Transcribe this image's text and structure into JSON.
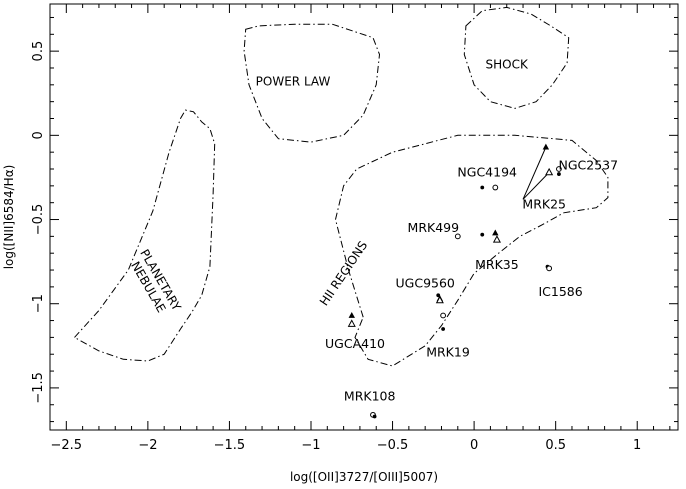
{
  "chart_data": {
    "type": "scatter",
    "xlabel": "log([OII]3727/[OIII]5007)",
    "ylabel": "log([NII]6584/Hα)",
    "xlim": [
      -2.6,
      1.25
    ],
    "ylim": [
      -1.75,
      0.78
    ],
    "xticks": [
      -2.5,
      -2,
      -1.5,
      -1,
      -0.5,
      0,
      0.5,
      1
    ],
    "yticks": [
      -1.5,
      -1,
      -0.5,
      0,
      0.5
    ],
    "xtick_labels": [
      "−2.5",
      "−2",
      "−1.5",
      "−1",
      "−0.5",
      "0",
      "0.5",
      "1"
    ],
    "ytick_labels": [
      "−1.5",
      "−1",
      "−0.5",
      "0",
      "0.5"
    ],
    "grid": false,
    "regions": [
      {
        "name": "PLANETARY NEBULAE",
        "label_lines": [
          "PLANETARY",
          "NEBULAE"
        ],
        "label_at": [
          -1.96,
          -0.88
        ],
        "label_rotation": 60,
        "boundary": [
          [
            -2.45,
            -1.2
          ],
          [
            -2.3,
            -1.04
          ],
          [
            -2.12,
            -0.8
          ],
          [
            -1.97,
            -0.45
          ],
          [
            -1.87,
            -0.1
          ],
          [
            -1.8,
            0.1
          ],
          [
            -1.77,
            0.15
          ],
          [
            -1.72,
            0.14
          ],
          [
            -1.67,
            0.08
          ],
          [
            -1.62,
            0.04
          ],
          [
            -1.59,
            -0.05
          ],
          [
            -1.6,
            -0.35
          ],
          [
            -1.62,
            -0.78
          ],
          [
            -1.67,
            -0.95
          ],
          [
            -1.73,
            -1.05
          ],
          [
            -1.8,
            -1.15
          ],
          [
            -1.9,
            -1.3
          ],
          [
            -2.0,
            -1.34
          ],
          [
            -2.15,
            -1.33
          ],
          [
            -2.3,
            -1.28
          ],
          [
            -2.45,
            -1.2
          ]
        ]
      },
      {
        "name": "POWER LAW",
        "label_lines": [
          "POWER LAW"
        ],
        "label_at": [
          -1.11,
          0.32
        ],
        "label_rotation": 0,
        "boundary": [
          [
            -1.4,
            0.63
          ],
          [
            -1.32,
            0.65
          ],
          [
            -1.1,
            0.66
          ],
          [
            -0.87,
            0.66
          ],
          [
            -0.62,
            0.58
          ],
          [
            -0.58,
            0.48
          ],
          [
            -0.6,
            0.3
          ],
          [
            -0.68,
            0.12
          ],
          [
            -0.8,
            0.0
          ],
          [
            -1.0,
            -0.04
          ],
          [
            -1.2,
            -0.02
          ],
          [
            -1.3,
            0.1
          ],
          [
            -1.38,
            0.3
          ],
          [
            -1.41,
            0.5
          ],
          [
            -1.4,
            0.63
          ]
        ]
      },
      {
        "name": "SHOCK",
        "label_lines": [
          "SHOCK"
        ],
        "label_at": [
          0.2,
          0.42
        ],
        "label_rotation": 0,
        "boundary": [
          [
            -0.05,
            0.65
          ],
          [
            0.05,
            0.74
          ],
          [
            0.2,
            0.76
          ],
          [
            0.35,
            0.72
          ],
          [
            0.47,
            0.65
          ],
          [
            0.58,
            0.58
          ],
          [
            0.57,
            0.43
          ],
          [
            0.48,
            0.3
          ],
          [
            0.38,
            0.2
          ],
          [
            0.25,
            0.16
          ],
          [
            0.1,
            0.2
          ],
          [
            0.0,
            0.3
          ],
          [
            -0.06,
            0.48
          ],
          [
            -0.05,
            0.65
          ]
        ]
      },
      {
        "name": "HII REGIONS",
        "label_lines": [
          "HII REGIONS"
        ],
        "label_at": [
          -0.8,
          -0.82
        ],
        "label_rotation": -56,
        "boundary": [
          [
            -0.68,
            -1.08
          ],
          [
            -0.77,
            -0.8
          ],
          [
            -0.85,
            -0.5
          ],
          [
            -0.8,
            -0.3
          ],
          [
            -0.72,
            -0.2
          ],
          [
            -0.5,
            -0.1
          ],
          [
            -0.1,
            0.0
          ],
          [
            0.25,
            0.0
          ],
          [
            0.6,
            -0.03
          ],
          [
            0.75,
            -0.15
          ],
          [
            0.82,
            -0.25
          ],
          [
            0.82,
            -0.37
          ],
          [
            0.75,
            -0.43
          ],
          [
            0.55,
            -0.46
          ],
          [
            0.42,
            -0.53
          ],
          [
            0.28,
            -0.6
          ],
          [
            0.15,
            -0.7
          ],
          [
            0.0,
            -0.82
          ],
          [
            -0.1,
            -0.98
          ],
          [
            -0.2,
            -1.13
          ],
          [
            -0.3,
            -1.25
          ],
          [
            -0.5,
            -1.37
          ],
          [
            -0.65,
            -1.33
          ],
          [
            -0.73,
            -1.2
          ],
          [
            -0.68,
            -1.08
          ]
        ]
      }
    ],
    "points": [
      {
        "x": 0.44,
        "y": -0.07,
        "marker": "filled-triangle"
      },
      {
        "x": 0.46,
        "y": -0.22,
        "marker": "open-triangle"
      },
      {
        "x": 0.52,
        "y": -0.23,
        "marker": "filled-dot"
      },
      {
        "x": 0.52,
        "y": -0.2,
        "marker": "open-circle"
      },
      {
        "x": 0.05,
        "y": -0.31,
        "marker": "filled-dot"
      },
      {
        "x": 0.13,
        "y": -0.31,
        "marker": "open-circle"
      },
      {
        "x": 0.05,
        "y": -0.59,
        "marker": "filled-dot"
      },
      {
        "x": -0.1,
        "y": -0.6,
        "marker": "open-circle"
      },
      {
        "x": 0.13,
        "y": -0.58,
        "marker": "filled-triangle"
      },
      {
        "x": 0.14,
        "y": -0.62,
        "marker": "open-triangle"
      },
      {
        "x": 0.45,
        "y": -0.78,
        "marker": "filled-dot"
      },
      {
        "x": 0.46,
        "y": -0.79,
        "marker": "open-circle"
      },
      {
        "x": -0.22,
        "y": -0.95,
        "marker": "filled-dot"
      },
      {
        "x": -0.21,
        "y": -0.97,
        "marker": "filled-triangle"
      },
      {
        "x": -0.21,
        "y": -0.98,
        "marker": "open-triangle"
      },
      {
        "x": -0.19,
        "y": -1.07,
        "marker": "open-circle"
      },
      {
        "x": -0.19,
        "y": -1.15,
        "marker": "filled-dot"
      },
      {
        "x": -0.75,
        "y": -1.07,
        "marker": "filled-triangle"
      },
      {
        "x": -0.75,
        "y": -1.12,
        "marker": "open-triangle"
      },
      {
        "x": -0.62,
        "y": -1.66,
        "marker": "open-circle"
      },
      {
        "x": -0.61,
        "y": -1.67,
        "marker": "filled-dot"
      }
    ],
    "arrows": [
      {
        "from": [
          0.3,
          -0.38
        ],
        "to": [
          0.44,
          -0.07
        ]
      },
      {
        "from": [
          0.3,
          -0.38
        ],
        "to": [
          0.46,
          -0.22
        ]
      }
    ],
    "galaxy_labels": [
      {
        "text": "NGC4194",
        "at": [
          0.08,
          -0.22
        ]
      },
      {
        "text": "NGC2537",
        "at": [
          0.7,
          -0.18
        ]
      },
      {
        "text": "MRK25",
        "at": [
          0.43,
          -0.41
        ]
      },
      {
        "text": "MRK499",
        "at": [
          -0.25,
          -0.55
        ]
      },
      {
        "text": "MRK35",
        "at": [
          0.14,
          -0.77
        ]
      },
      {
        "text": "IC1586",
        "at": [
          0.53,
          -0.93
        ]
      },
      {
        "text": "UGC9560",
        "at": [
          -0.3,
          -0.88
        ]
      },
      {
        "text": "UGCA410",
        "at": [
          -0.73,
          -1.24
        ]
      },
      {
        "text": "MRK19",
        "at": [
          -0.16,
          -1.29
        ]
      },
      {
        "text": "MRK108",
        "at": [
          -0.64,
          -1.55
        ]
      }
    ]
  }
}
